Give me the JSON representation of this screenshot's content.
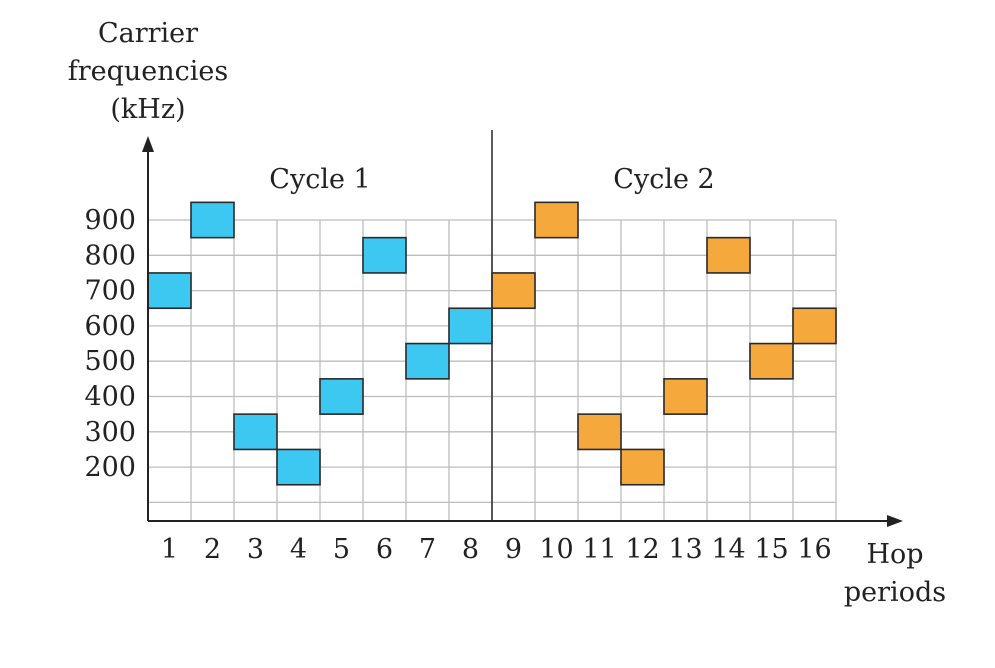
{
  "chart_data": {
    "type": "scatter",
    "title": "",
    "ylabel": [
      "Carrier",
      "frequencies",
      "(kHz)"
    ],
    "xlabel": [
      "Hop",
      "periods"
    ],
    "x": [
      1,
      2,
      3,
      4,
      5,
      6,
      7,
      8,
      9,
      10,
      11,
      12,
      13,
      14,
      15,
      16
    ],
    "yticks": [
      900,
      800,
      700,
      600,
      500,
      400,
      300,
      200
    ],
    "ylim": [
      100,
      900
    ],
    "grid": true,
    "cycles": [
      {
        "label": "Cycle 1",
        "color": "#3cc8f0",
        "periods": [
          1,
          2,
          3,
          4,
          5,
          6,
          7,
          8
        ],
        "values": [
          700,
          900,
          300,
          200,
          400,
          800,
          500,
          600
        ]
      },
      {
        "label": "Cycle 2",
        "color": "#f5a93c",
        "periods": [
          9,
          10,
          11,
          12,
          13,
          14,
          15,
          16
        ],
        "values": [
          700,
          900,
          300,
          200,
          400,
          800,
          500,
          600
        ]
      }
    ]
  }
}
